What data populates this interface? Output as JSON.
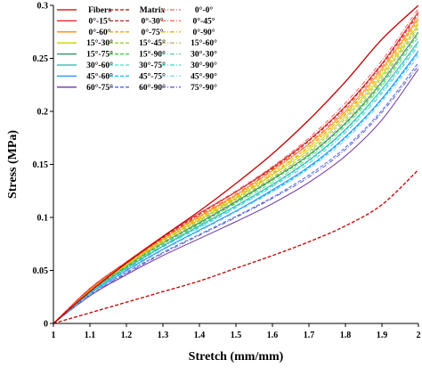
{
  "chart_data": {
    "type": "line",
    "xlabel": "Stretch (mm/mm)",
    "ylabel": "Stress (MPa)",
    "xlim": [
      1,
      2
    ],
    "ylim": [
      0,
      0.3
    ],
    "xticks": [
      "1",
      "1.1",
      "1.2",
      "1.3",
      "1.4",
      "1.5",
      "1.6",
      "1.7",
      "1.8",
      "1.9",
      "2"
    ],
    "yticks": [
      "0",
      "0.05",
      "0.1",
      "0.15",
      "0.2",
      "0.25",
      "0.3"
    ],
    "grid": false,
    "legend_position": "top-left",
    "legend_columns": 3,
    "x": [
      1.0,
      1.1,
      1.2,
      1.3,
      1.4,
      1.5,
      1.6,
      1.7,
      1.8,
      1.9,
      2.0
    ],
    "series": [
      {
        "name": "Fibers",
        "color": "#c00000",
        "dash": "solid",
        "values": [
          0,
          0.03,
          0.057,
          0.082,
          0.106,
          0.132,
          0.16,
          0.192,
          0.228,
          0.268,
          0.3
        ]
      },
      {
        "name": "Matrix",
        "color": "#c00000",
        "dash": "dashed",
        "values": [
          0,
          0.01,
          0.02,
          0.03,
          0.04,
          0.052,
          0.064,
          0.077,
          0.092,
          0.112,
          0.145
        ]
      },
      {
        "name": "0°-0°",
        "color": "#e06666",
        "dash": "dashdot",
        "values": [
          0,
          0.033,
          0.058,
          0.082,
          0.104,
          0.125,
          0.148,
          0.175,
          0.208,
          0.248,
          0.297
        ]
      },
      {
        "name": "0°-15°",
        "color": "#e41a1c",
        "dash": "solid",
        "values": [
          0,
          0.033,
          0.058,
          0.082,
          0.104,
          0.124,
          0.147,
          0.173,
          0.205,
          0.245,
          0.294
        ]
      },
      {
        "name": "0°-30°",
        "color": "#b22222",
        "dash": "dashed",
        "values": [
          0,
          0.033,
          0.058,
          0.081,
          0.103,
          0.124,
          0.146,
          0.172,
          0.204,
          0.244,
          0.292
        ]
      },
      {
        "name": "0°-45°",
        "color": "#ff6347",
        "dash": "dashdot",
        "values": [
          0,
          0.032,
          0.057,
          0.08,
          0.102,
          0.122,
          0.145,
          0.17,
          0.202,
          0.242,
          0.29
        ]
      },
      {
        "name": "0°-60°",
        "color": "#ff8c00",
        "dash": "solid",
        "values": [
          0,
          0.032,
          0.057,
          0.08,
          0.101,
          0.121,
          0.144,
          0.169,
          0.2,
          0.24,
          0.288
        ]
      },
      {
        "name": "0°-75°",
        "color": "#ffa500",
        "dash": "dashed",
        "values": [
          0,
          0.032,
          0.056,
          0.079,
          0.1,
          0.12,
          0.142,
          0.167,
          0.198,
          0.238,
          0.286
        ]
      },
      {
        "name": "0°-90°",
        "color": "#e6b800",
        "dash": "dashdot",
        "values": [
          0,
          0.031,
          0.056,
          0.078,
          0.099,
          0.119,
          0.141,
          0.166,
          0.197,
          0.236,
          0.284
        ]
      },
      {
        "name": "15°-30°",
        "color": "#c8d400",
        "dash": "solid",
        "values": [
          0,
          0.031,
          0.055,
          0.078,
          0.098,
          0.118,
          0.14,
          0.164,
          0.195,
          0.234,
          0.282
        ]
      },
      {
        "name": "15°-45°",
        "color": "#9acd32",
        "dash": "dashed",
        "values": [
          0,
          0.031,
          0.055,
          0.077,
          0.097,
          0.117,
          0.138,
          0.162,
          0.193,
          0.232,
          0.28
        ]
      },
      {
        "name": "15°-60°",
        "color": "#bdb76b",
        "dash": "dashdot",
        "values": [
          0,
          0.03,
          0.054,
          0.076,
          0.096,
          0.116,
          0.137,
          0.161,
          0.191,
          0.23,
          0.278
        ]
      },
      {
        "name": "15°-75°",
        "color": "#2e8b57",
        "dash": "solid",
        "values": [
          0,
          0.03,
          0.054,
          0.076,
          0.095,
          0.115,
          0.136,
          0.159,
          0.189,
          0.228,
          0.275
        ]
      },
      {
        "name": "15°-90°",
        "color": "#32cd32",
        "dash": "dashed",
        "values": [
          0,
          0.03,
          0.053,
          0.075,
          0.094,
          0.114,
          0.135,
          0.158,
          0.188,
          0.226,
          0.273
        ]
      },
      {
        "name": "30°-30°",
        "color": "#66cdaa",
        "dash": "dashdot",
        "values": [
          0,
          0.029,
          0.053,
          0.074,
          0.093,
          0.113,
          0.133,
          0.156,
          0.186,
          0.224,
          0.27
        ]
      },
      {
        "name": "30°-60°",
        "color": "#20b2aa",
        "dash": "solid",
        "values": [
          0,
          0.029,
          0.052,
          0.073,
          0.092,
          0.111,
          0.131,
          0.154,
          0.183,
          0.221,
          0.266
        ]
      },
      {
        "name": "30°-75°",
        "color": "#40e0d0",
        "dash": "dashed",
        "values": [
          0,
          0.029,
          0.052,
          0.073,
          0.091,
          0.11,
          0.13,
          0.153,
          0.182,
          0.219,
          0.264
        ]
      },
      {
        "name": "30°-90°",
        "color": "#48d1cc",
        "dash": "dashdot",
        "values": [
          0,
          0.028,
          0.051,
          0.072,
          0.09,
          0.109,
          0.129,
          0.151,
          0.18,
          0.217,
          0.262
        ]
      },
      {
        "name": "45°-60°",
        "color": "#1e90ff",
        "dash": "solid",
        "values": [
          0,
          0.028,
          0.05,
          0.07,
          0.088,
          0.106,
          0.126,
          0.148,
          0.176,
          0.212,
          0.257
        ]
      },
      {
        "name": "45°-75°",
        "color": "#00bfff",
        "dash": "dashed",
        "values": [
          0,
          0.028,
          0.05,
          0.07,
          0.088,
          0.106,
          0.125,
          0.147,
          0.175,
          0.211,
          0.255
        ]
      },
      {
        "name": "45°-90°",
        "color": "#87ceeb",
        "dash": "dashdot",
        "values": [
          0,
          0.027,
          0.049,
          0.069,
          0.087,
          0.105,
          0.124,
          0.146,
          0.173,
          0.209,
          0.252
        ]
      },
      {
        "name": "60°-75°",
        "color": "#7030a0",
        "dash": "solid",
        "values": [
          0,
          0.026,
          0.046,
          0.064,
          0.08,
          0.096,
          0.113,
          0.133,
          0.158,
          0.192,
          0.24
        ]
      },
      {
        "name": "60°-90°",
        "color": "#4169e1",
        "dash": "dashed",
        "values": [
          0,
          0.027,
          0.048,
          0.067,
          0.084,
          0.101,
          0.119,
          0.14,
          0.166,
          0.201,
          0.246
        ]
      },
      {
        "name": "75°-90°",
        "color": "#6a5acd",
        "dash": "dashdot",
        "values": [
          0,
          0.027,
          0.047,
          0.066,
          0.083,
          0.1,
          0.118,
          0.138,
          0.164,
          0.199,
          0.243
        ]
      }
    ]
  }
}
